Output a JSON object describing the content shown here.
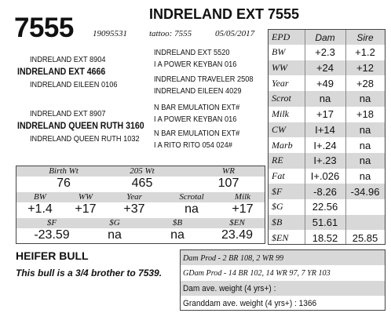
{
  "header": {
    "lot": "7555",
    "title": "INDRELAND EXT 7555",
    "reg": "19095531",
    "tattoo": "tattoo: 7555",
    "dob": "05/05/2017"
  },
  "pedigree": {
    "sire_sire_sire": "INDRELAND EXT 5520",
    "sire_sire_dam": "I A POWER KEYBAN 016",
    "sire_sire": "INDRELAND EXT 8904",
    "sire": "INDRELAND EXT 4666",
    "sire_dam": "INDRELAND EILEEN 0106",
    "sire_dam_sire": "INDRELAND TRAVELER 2508",
    "sire_dam_dam": "INDRELAND EILEEN 4029",
    "dam_sire_sire": "N BAR EMULATION EXT#",
    "dam_sire_dam": "I A POWER KEYBAN 016",
    "dam_sire": "INDRELAND EXT 8907",
    "dam": "INDRELAND QUEEN RUTH 3160",
    "dam_dam": "INDRELAND QUEEN RUTH 1032",
    "dam_dam_sire": "N BAR EMULATION EXT#",
    "dam_dam_dam": "I A RITO RITO 054 024#"
  },
  "epd": {
    "headers": [
      "EPD",
      "Dam",
      "Sire"
    ],
    "rows": [
      {
        "label": "BW",
        "dam": "+2.3",
        "sire": "+1.2"
      },
      {
        "label": "WW",
        "dam": "+24",
        "sire": "+12"
      },
      {
        "label": "Year",
        "dam": "+49",
        "sire": "+28"
      },
      {
        "label": "Scrot",
        "dam": "na",
        "sire": "na"
      },
      {
        "label": "Milk",
        "dam": "+17",
        "sire": "+18"
      },
      {
        "label": "CW",
        "dam": "I+14",
        "sire": "na"
      },
      {
        "label": "Marb",
        "dam": "I+.24",
        "sire": "na"
      },
      {
        "label": "RE",
        "dam": "I+.23",
        "sire": "na"
      },
      {
        "label": "Fat",
        "dam": "I+.026",
        "sire": "na"
      },
      {
        "label": "$F",
        "dam": "-8.26",
        "sire": "-34.96"
      },
      {
        "label": "$G",
        "dam": "22.56",
        "sire": ""
      },
      {
        "label": "$B",
        "dam": "51.61",
        "sire": ""
      },
      {
        "label": "$EN",
        "dam": "18.52",
        "sire": "25.85"
      }
    ]
  },
  "weights": {
    "labels": [
      "Birth Wt",
      "205 Wt",
      "WR"
    ],
    "values": [
      "76",
      "465",
      "107"
    ]
  },
  "calf_epd": {
    "labels": [
      "BW",
      "WW",
      "Year",
      "Scrotal",
      "Milk"
    ],
    "values": [
      "+1.4",
      "+17",
      "+37",
      "na",
      "+17"
    ]
  },
  "calf_index": {
    "labels": [
      "$F",
      "$G",
      "$B",
      "$EN"
    ],
    "values": [
      "-23.59",
      "na",
      "na",
      "23.49"
    ]
  },
  "description": {
    "type": "HEIFER BULL",
    "note": "This bull is a 3/4 brother to 7539."
  },
  "production": {
    "dam_prod": "Dam Prod - 2 BR 108, 2 WR 99",
    "gdam_prod": "GDam Prod - 14 BR 102, 14 WR 97, 7 YR 103",
    "dam_weight": "Dam ave. weight (4 yrs+) :",
    "gdam_weight": "Granddam ave. weight (4 yrs+) : 1366"
  }
}
